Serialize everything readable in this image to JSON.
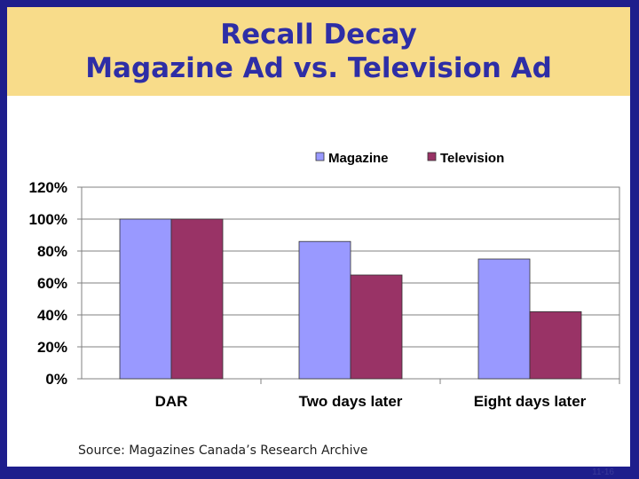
{
  "slide": {
    "title_line1": "Recall Decay",
    "title_line2": "Magazine Ad vs. Television Ad",
    "source": "Source: Magazines Canada’s Research Archive",
    "slide_number": "11-16"
  },
  "colors": {
    "magazine": "#9999ff",
    "television": "#993366",
    "title_text": "#2e2ea6",
    "title_band": "#f8dc8a"
  },
  "chart_data": {
    "type": "bar",
    "title": "",
    "categories": [
      "DAR",
      "Two days later",
      "Eight days later"
    ],
    "series": [
      {
        "name": "Magazine",
        "values": [
          100,
          86,
          75
        ]
      },
      {
        "name": "Television",
        "values": [
          100,
          65,
          42
        ]
      }
    ],
    "ylim": [
      0,
      120
    ],
    "yticks": [
      0,
      20,
      40,
      60,
      80,
      100,
      120
    ],
    "ytick_labels": [
      "0%",
      "20%",
      "40%",
      "60%",
      "80%",
      "100%",
      "120%"
    ],
    "xlabel": "",
    "ylabel": "",
    "grid": true,
    "legend_position": "top"
  }
}
